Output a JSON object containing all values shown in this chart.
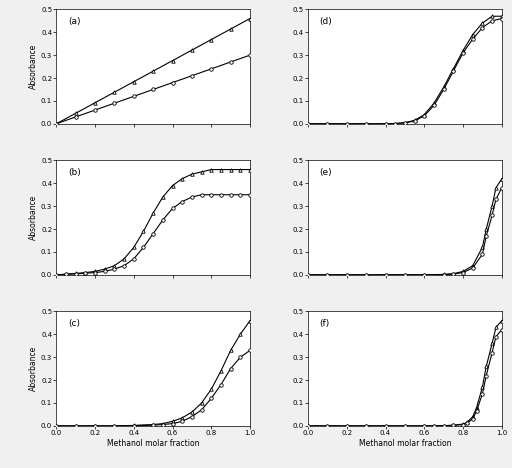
{
  "panels": [
    "(a)",
    "(b)",
    "(c)",
    "(d)",
    "(e)",
    "(f)"
  ],
  "xlabel_left": "Methanol molar fraction",
  "xlabel_right": "Methanol molar fraction",
  "ylabel": "Absorbance",
  "ylim": [
    0,
    0.5
  ],
  "xlim": [
    0,
    1
  ],
  "yticks": [
    0,
    0.1,
    0.2,
    0.3,
    0.4,
    0.5
  ],
  "xticks": [
    0,
    0.2,
    0.4,
    0.6,
    0.8,
    1
  ],
  "panel_a": {
    "p1_x": [
      0,
      0.1,
      0.2,
      0.3,
      0.4,
      0.5,
      0.6,
      0.7,
      0.8,
      0.9,
      1.0
    ],
    "p1_y": [
      0,
      0.046,
      0.092,
      0.138,
      0.184,
      0.23,
      0.276,
      0.322,
      0.368,
      0.414,
      0.46
    ],
    "p2_x": [
      0,
      0.1,
      0.2,
      0.3,
      0.4,
      0.5,
      0.6,
      0.7,
      0.8,
      0.9,
      1.0
    ],
    "p2_y": [
      0,
      0.03,
      0.06,
      0.09,
      0.12,
      0.15,
      0.18,
      0.21,
      0.24,
      0.27,
      0.3
    ]
  },
  "panel_b": {
    "p1_x": [
      0,
      0.05,
      0.1,
      0.15,
      0.2,
      0.25,
      0.3,
      0.35,
      0.4,
      0.45,
      0.5,
      0.55,
      0.6,
      0.65,
      0.7,
      0.75,
      0.8,
      0.85,
      0.9,
      0.95,
      1.0
    ],
    "p1_y": [
      0,
      0.003,
      0.006,
      0.01,
      0.015,
      0.025,
      0.04,
      0.07,
      0.12,
      0.19,
      0.27,
      0.34,
      0.39,
      0.42,
      0.44,
      0.45,
      0.46,
      0.46,
      0.46,
      0.46,
      0.46
    ],
    "p2_x": [
      0,
      0.05,
      0.1,
      0.15,
      0.2,
      0.25,
      0.3,
      0.35,
      0.4,
      0.45,
      0.5,
      0.55,
      0.6,
      0.65,
      0.7,
      0.75,
      0.8,
      0.85,
      0.9,
      0.95,
      1.0
    ],
    "p2_y": [
      0,
      0.002,
      0.004,
      0.007,
      0.01,
      0.015,
      0.025,
      0.04,
      0.07,
      0.12,
      0.18,
      0.24,
      0.29,
      0.32,
      0.34,
      0.35,
      0.35,
      0.35,
      0.35,
      0.35,
      0.35
    ]
  },
  "panel_c": {
    "p1_x": [
      0,
      0.1,
      0.2,
      0.3,
      0.4,
      0.5,
      0.55,
      0.6,
      0.65,
      0.7,
      0.75,
      0.8,
      0.85,
      0.9,
      0.95,
      1.0
    ],
    "p1_y": [
      0,
      0.0,
      0.0,
      0.0,
      0.002,
      0.006,
      0.01,
      0.02,
      0.035,
      0.06,
      0.1,
      0.16,
      0.24,
      0.33,
      0.4,
      0.46
    ],
    "p2_x": [
      0,
      0.1,
      0.2,
      0.3,
      0.4,
      0.5,
      0.55,
      0.6,
      0.65,
      0.7,
      0.75,
      0.8,
      0.85,
      0.9,
      0.95,
      1.0
    ],
    "p2_y": [
      0,
      0.0,
      0.0,
      0.0,
      0.001,
      0.003,
      0.006,
      0.01,
      0.02,
      0.04,
      0.07,
      0.12,
      0.18,
      0.25,
      0.3,
      0.33
    ]
  },
  "panel_d": {
    "p1_x": [
      0,
      0.1,
      0.2,
      0.3,
      0.4,
      0.45,
      0.5,
      0.55,
      0.6,
      0.65,
      0.7,
      0.75,
      0.8,
      0.85,
      0.9,
      0.95,
      1.0
    ],
    "p1_y": [
      0,
      0.0,
      0.0,
      0.0,
      0.0,
      0.001,
      0.005,
      0.015,
      0.04,
      0.09,
      0.16,
      0.24,
      0.32,
      0.39,
      0.44,
      0.47,
      0.47
    ],
    "p2_x": [
      0,
      0.1,
      0.2,
      0.3,
      0.4,
      0.45,
      0.5,
      0.55,
      0.6,
      0.65,
      0.7,
      0.75,
      0.8,
      0.85,
      0.9,
      0.95,
      1.0
    ],
    "p2_y": [
      0,
      0.0,
      0.0,
      0.0,
      0.0,
      0.001,
      0.004,
      0.012,
      0.035,
      0.08,
      0.15,
      0.23,
      0.31,
      0.37,
      0.42,
      0.45,
      0.46
    ]
  },
  "panel_e": {
    "p1_x": [
      0,
      0.1,
      0.2,
      0.3,
      0.4,
      0.5,
      0.6,
      0.7,
      0.75,
      0.8,
      0.85,
      0.9,
      0.92,
      0.95,
      0.97,
      1.0
    ],
    "p1_y": [
      0,
      0.0,
      0.0,
      0.0,
      0.0,
      0.0,
      0.0,
      0.002,
      0.005,
      0.015,
      0.04,
      0.12,
      0.2,
      0.3,
      0.38,
      0.42
    ],
    "p2_x": [
      0,
      0.1,
      0.2,
      0.3,
      0.4,
      0.5,
      0.6,
      0.7,
      0.75,
      0.8,
      0.85,
      0.9,
      0.92,
      0.95,
      0.97,
      1.0
    ],
    "p2_y": [
      0,
      0.0,
      0.0,
      0.0,
      0.0,
      0.0,
      0.0,
      0.001,
      0.003,
      0.01,
      0.03,
      0.09,
      0.17,
      0.26,
      0.33,
      0.38
    ]
  },
  "panel_f": {
    "p1_x": [
      0,
      0.1,
      0.2,
      0.3,
      0.4,
      0.5,
      0.6,
      0.65,
      0.7,
      0.75,
      0.8,
      0.82,
      0.85,
      0.87,
      0.9,
      0.92,
      0.95,
      0.97,
      1.0
    ],
    "p1_y": [
      0,
      0.0,
      0.0,
      0.0,
      0.0,
      0.0,
      0.0,
      0.0,
      0.001,
      0.003,
      0.008,
      0.015,
      0.04,
      0.08,
      0.17,
      0.26,
      0.36,
      0.43,
      0.46
    ],
    "p2_x": [
      0,
      0.1,
      0.2,
      0.3,
      0.4,
      0.5,
      0.6,
      0.65,
      0.7,
      0.75,
      0.8,
      0.82,
      0.85,
      0.87,
      0.9,
      0.92,
      0.95,
      0.97,
      1.0
    ],
    "p2_y": [
      0,
      0.0,
      0.0,
      0.0,
      0.0,
      0.0,
      0.0,
      0.0,
      0.001,
      0.002,
      0.006,
      0.012,
      0.03,
      0.065,
      0.14,
      0.22,
      0.32,
      0.39,
      0.42
    ]
  },
  "marker_p1": "^",
  "marker_p2": "o",
  "color": "black",
  "linewidth": 0.8,
  "markersize": 2.5,
  "bg_color": "#f0f0f0",
  "plot_bg": "#ffffff"
}
